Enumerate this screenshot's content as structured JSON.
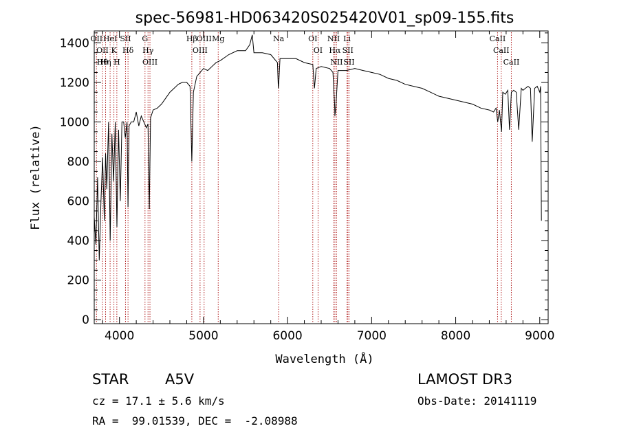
{
  "info": {
    "object_class": "STAR",
    "subclass": "A5V",
    "survey": "LAMOST DR3",
    "redshift": "cz = 17.1 ± 5.6 km/s",
    "obs_date": "Obs-Date: 20141119",
    "coords": "RA =  99.01539, DEC =  -2.08988"
  },
  "chart_data": {
    "type": "line",
    "title": "spec-56981-HD063420S025420V01_sp09-155.fits",
    "xlabel": "Wavelength (Å)",
    "ylabel": "Flux (relative)",
    "xlim": [
      3700,
      9100
    ],
    "ylim": [
      -20,
      1460
    ],
    "xticks": [
      4000,
      5000,
      6000,
      7000,
      8000,
      9000
    ],
    "yticks": [
      0,
      200,
      400,
      600,
      800,
      1000,
      1200,
      1400
    ],
    "line_color": "#000000",
    "marker_color": "#b22222",
    "grid": false,
    "series": [
      {
        "x": [
          3700,
          3720,
          3740,
          3760,
          3780,
          3800,
          3820,
          3835,
          3850,
          3870,
          3890,
          3910,
          3930,
          3950,
          3970,
          3990,
          4010,
          4030,
          4050,
          4070,
          4090,
          4102,
          4115,
          4140,
          4170,
          4200,
          4230,
          4260,
          4290,
          4320,
          4340,
          4355,
          4370,
          4400,
          4450,
          4500,
          4550,
          4600,
          4650,
          4700,
          4750,
          4800,
          4840,
          4861,
          4880,
          4920,
          4960,
          5000,
          5050,
          5100,
          5150,
          5200,
          5300,
          5400,
          5500,
          5550,
          5580,
          5600,
          5700,
          5800,
          5880,
          5890,
          5896,
          5910,
          6000,
          6100,
          6200,
          6300,
          6320,
          6340,
          6400,
          6500,
          6540,
          6560,
          6563,
          6575,
          6600,
          6700,
          6800,
          6900,
          7000,
          7100,
          7200,
          7300,
          7400,
          7500,
          7600,
          7700,
          7800,
          7900,
          8000,
          8100,
          8200,
          8300,
          8400,
          8450,
          8480,
          8500,
          8520,
          8545,
          8560,
          8590,
          8620,
          8640,
          8662,
          8690,
          8720,
          8750,
          8780,
          8800,
          8830,
          8860,
          8890,
          8910,
          8940,
          8970,
          9000,
          9010,
          9020
        ],
        "y": [
          520,
          380,
          720,
          300,
          600,
          820,
          500,
          840,
          660,
          1000,
          400,
          940,
          700,
          1000,
          470,
          960,
          600,
          1000,
          1000,
          920,
          1000,
          570,
          980,
          1000,
          1000,
          1050,
          980,
          1030,
          1000,
          970,
          990,
          560,
          1020,
          1060,
          1070,
          1090,
          1120,
          1150,
          1170,
          1190,
          1200,
          1200,
          1180,
          800,
          1150,
          1230,
          1250,
          1270,
          1260,
          1280,
          1300,
          1310,
          1340,
          1360,
          1360,
          1390,
          1440,
          1350,
          1350,
          1340,
          1300,
          1170,
          1200,
          1320,
          1320,
          1320,
          1300,
          1290,
          1170,
          1270,
          1280,
          1270,
          1250,
          1080,
          1030,
          1080,
          1260,
          1260,
          1270,
          1260,
          1250,
          1240,
          1220,
          1210,
          1190,
          1180,
          1170,
          1150,
          1130,
          1120,
          1110,
          1100,
          1090,
          1070,
          1060,
          1050,
          1070,
          1000,
          1060,
          950,
          1150,
          1140,
          1160,
          960,
          1150,
          1160,
          1150,
          960,
          1170,
          1160,
          1170,
          1180,
          1170,
          900,
          1170,
          1180,
          1150,
          1180,
          500
        ]
      }
    ],
    "lines": [
      {
        "w": 3727,
        "labels": [
          "OII"
        ]
      },
      {
        "w": 3798,
        "labels": [
          "OII",
          "Hθ"
        ]
      },
      {
        "w": 3835,
        "labels": [
          "Hη"
        ]
      },
      {
        "w": 3889,
        "labels": [
          "HeI"
        ]
      },
      {
        "w": 3934,
        "labels": [
          "K"
        ]
      },
      {
        "w": 3969,
        "labels": [
          "H"
        ]
      },
      {
        "w": 4072,
        "labels": [
          "SII"
        ]
      },
      {
        "w": 4102,
        "labels": [
          "Hδ"
        ]
      },
      {
        "w": 4304,
        "labels": [
          "G"
        ]
      },
      {
        "w": 4340,
        "labels": [
          "Hγ"
        ]
      },
      {
        "w": 4363,
        "labels": [
          "OIII"
        ]
      },
      {
        "w": 4861,
        "labels": [
          "Hβ"
        ]
      },
      {
        "w": 4959,
        "labels": [
          "OIII"
        ]
      },
      {
        "w": 5007,
        "labels": [
          "OIII"
        ]
      },
      {
        "w": 5175,
        "labels": [
          "Mg"
        ]
      },
      {
        "w": 5894,
        "labels": [
          "Na"
        ]
      },
      {
        "w": 6300,
        "labels": [
          "OI"
        ]
      },
      {
        "w": 6363,
        "labels": [
          "OI"
        ]
      },
      {
        "w": 6548,
        "labels": [
          "NII"
        ]
      },
      {
        "w": 6563,
        "labels": [
          "Hα"
        ]
      },
      {
        "w": 6583,
        "labels": [
          "NII"
        ]
      },
      {
        "w": 6707,
        "labels": [
          "Li"
        ]
      },
      {
        "w": 6717,
        "labels": [
          "SII"
        ]
      },
      {
        "w": 6731,
        "labels": [
          "SII"
        ]
      },
      {
        "w": 8498,
        "labels": [
          "CaII"
        ]
      },
      {
        "w": 8542,
        "labels": [
          "CaII"
        ]
      },
      {
        "w": 8662,
        "labels": [
          "CaII"
        ]
      }
    ]
  }
}
